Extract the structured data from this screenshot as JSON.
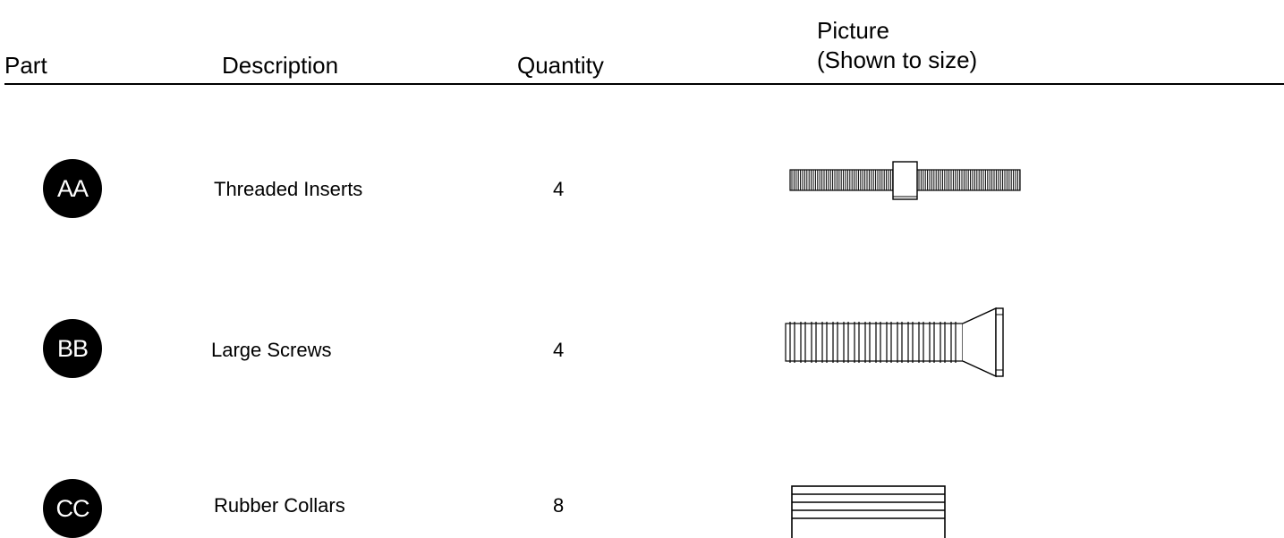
{
  "headers": {
    "part": "Part",
    "description": "Description",
    "quantity": "Quantity",
    "picture_line1": "Picture",
    "picture_line2": "(Shown to size)"
  },
  "rows": [
    {
      "part": "AA",
      "description": "Threaded Inserts",
      "quantity": "4",
      "icon": "threaded-insert-icon"
    },
    {
      "part": "BB",
      "description": "Large Screws",
      "quantity": "4",
      "icon": "large-screw-icon"
    },
    {
      "part": "CC",
      "description": "Rubber Collars",
      "quantity": "8",
      "icon": "rubber-collar-icon"
    }
  ],
  "colors": {
    "ink": "#000000",
    "background": "#ffffff"
  }
}
